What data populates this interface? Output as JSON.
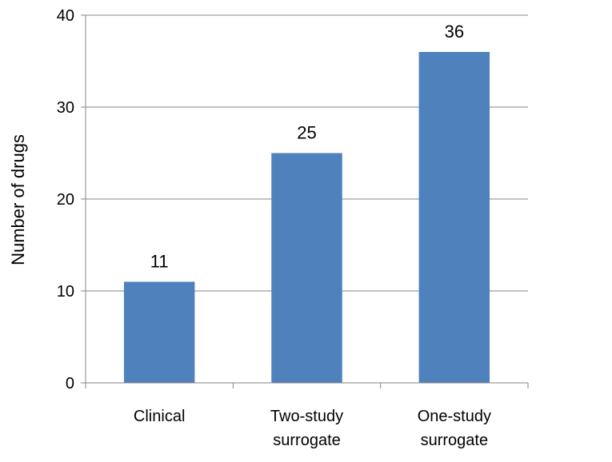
{
  "chart_data": {
    "type": "bar",
    "categories": [
      [
        "Clinical"
      ],
      [
        "Two-study",
        "surrogate"
      ],
      [
        "One-study",
        "surrogate"
      ]
    ],
    "values": [
      11,
      25,
      36
    ],
    "data_labels": [
      "11",
      "25",
      "36"
    ],
    "title": "",
    "xlabel": "",
    "ylabel": "Number of drugs",
    "ylim": [
      0,
      40
    ],
    "yticks": [
      0,
      10,
      20,
      30,
      40
    ],
    "ytick_labels": [
      "0",
      "10",
      "20",
      "30",
      "40"
    ],
    "grid": true,
    "legend": "none",
    "colors": {
      "bar": "#4F81BD",
      "grid": "#868686",
      "axis": "#868686"
    }
  }
}
